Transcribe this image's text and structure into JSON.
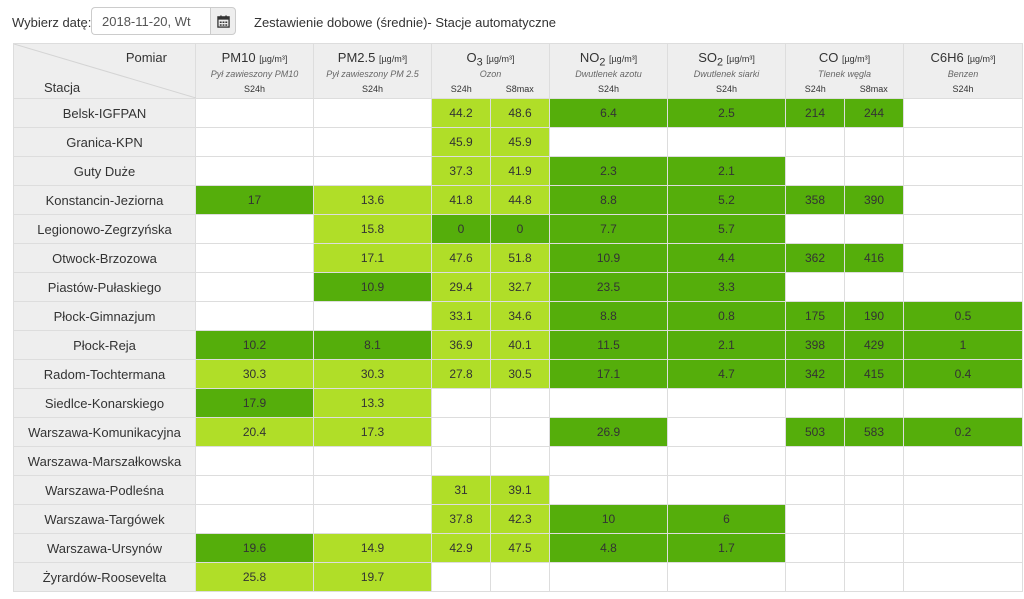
{
  "header": {
    "date_label": "Wybierz datę:",
    "date_value": "2018-11-20, Wt",
    "title": "Zestawienie dobowe (średnie)- Stacje automatyczne"
  },
  "icons": {
    "calendar": "calendar-icon"
  },
  "colors": {
    "light": "#b0de28",
    "dark": "#55ae0b",
    "header_bg": "#eeeeee"
  },
  "table": {
    "corner_top": "Pomiar",
    "corner_bottom": "Stacja",
    "pollutants": [
      {
        "name": "PM10",
        "sub": "",
        "unit": "[µg/m³]",
        "desc": "Pył zawieszony PM10",
        "types": [
          "S24h"
        ]
      },
      {
        "name": "PM2.5",
        "sub": "",
        "unit": "[µg/m³]",
        "desc": "Pył zawieszony PM 2.5",
        "types": [
          "S24h"
        ]
      },
      {
        "name": "O",
        "sub": "3",
        "unit": "[µg/m³]",
        "desc": "Ozon",
        "types": [
          "S24h",
          "S8max"
        ]
      },
      {
        "name": "NO",
        "sub": "2",
        "unit": "[µg/m³]",
        "desc": "Dwutlenek azotu",
        "types": [
          "S24h"
        ]
      },
      {
        "name": "SO",
        "sub": "2",
        "unit": "[µg/m³]",
        "desc": "Dwutlenek siarki",
        "types": [
          "S24h"
        ]
      },
      {
        "name": "CO",
        "sub": "",
        "unit": "[µg/m³]",
        "desc": "Tlenek węgla",
        "types": [
          "S24h",
          "S8max"
        ]
      },
      {
        "name": "C6H6",
        "sub": "",
        "unit": "[µg/m³]",
        "desc": "Benzen",
        "types": [
          "S24h"
        ]
      }
    ],
    "rows": [
      {
        "station": "Belsk-IGFPAN",
        "cells": [
          {
            "v": "",
            "c": "none"
          },
          {
            "v": "",
            "c": "none"
          },
          {
            "v": "44.2",
            "c": "light"
          },
          {
            "v": "48.6",
            "c": "light"
          },
          {
            "v": "6.4",
            "c": "dark"
          },
          {
            "v": "2.5",
            "c": "dark"
          },
          {
            "v": "214",
            "c": "dark"
          },
          {
            "v": "244",
            "c": "dark"
          },
          {
            "v": "",
            "c": "none"
          }
        ]
      },
      {
        "station": "Granica-KPN",
        "cells": [
          {
            "v": "",
            "c": "none"
          },
          {
            "v": "",
            "c": "none"
          },
          {
            "v": "45.9",
            "c": "light"
          },
          {
            "v": "45.9",
            "c": "light"
          },
          {
            "v": "",
            "c": "none"
          },
          {
            "v": "",
            "c": "none"
          },
          {
            "v": "",
            "c": "none"
          },
          {
            "v": "",
            "c": "none"
          },
          {
            "v": "",
            "c": "none"
          }
        ]
      },
      {
        "station": "Guty Duże",
        "cells": [
          {
            "v": "",
            "c": "none"
          },
          {
            "v": "",
            "c": "none"
          },
          {
            "v": "37.3",
            "c": "light"
          },
          {
            "v": "41.9",
            "c": "light"
          },
          {
            "v": "2.3",
            "c": "dark"
          },
          {
            "v": "2.1",
            "c": "dark"
          },
          {
            "v": "",
            "c": "none"
          },
          {
            "v": "",
            "c": "none"
          },
          {
            "v": "",
            "c": "none"
          }
        ]
      },
      {
        "station": "Konstancin-Jeziorna",
        "cells": [
          {
            "v": "17",
            "c": "dark"
          },
          {
            "v": "13.6",
            "c": "light"
          },
          {
            "v": "41.8",
            "c": "light"
          },
          {
            "v": "44.8",
            "c": "light"
          },
          {
            "v": "8.8",
            "c": "dark"
          },
          {
            "v": "5.2",
            "c": "dark"
          },
          {
            "v": "358",
            "c": "dark"
          },
          {
            "v": "390",
            "c": "dark"
          },
          {
            "v": "",
            "c": "none"
          }
        ]
      },
      {
        "station": "Legionowo-Zegrzyńska",
        "cells": [
          {
            "v": "",
            "c": "none"
          },
          {
            "v": "15.8",
            "c": "light"
          },
          {
            "v": "0",
            "c": "dark"
          },
          {
            "v": "0",
            "c": "dark"
          },
          {
            "v": "7.7",
            "c": "dark"
          },
          {
            "v": "5.7",
            "c": "dark"
          },
          {
            "v": "",
            "c": "none"
          },
          {
            "v": "",
            "c": "none"
          },
          {
            "v": "",
            "c": "none"
          }
        ]
      },
      {
        "station": "Otwock-Brzozowa",
        "cells": [
          {
            "v": "",
            "c": "none"
          },
          {
            "v": "17.1",
            "c": "light"
          },
          {
            "v": "47.6",
            "c": "light"
          },
          {
            "v": "51.8",
            "c": "light"
          },
          {
            "v": "10.9",
            "c": "dark"
          },
          {
            "v": "4.4",
            "c": "dark"
          },
          {
            "v": "362",
            "c": "dark"
          },
          {
            "v": "416",
            "c": "dark"
          },
          {
            "v": "",
            "c": "none"
          }
        ]
      },
      {
        "station": "Piastów-Pułaskiego",
        "cells": [
          {
            "v": "",
            "c": "none"
          },
          {
            "v": "10.9",
            "c": "dark"
          },
          {
            "v": "29.4",
            "c": "light"
          },
          {
            "v": "32.7",
            "c": "light"
          },
          {
            "v": "23.5",
            "c": "dark"
          },
          {
            "v": "3.3",
            "c": "dark"
          },
          {
            "v": "",
            "c": "none"
          },
          {
            "v": "",
            "c": "none"
          },
          {
            "v": "",
            "c": "none"
          }
        ]
      },
      {
        "station": "Płock-Gimnazjum",
        "cells": [
          {
            "v": "",
            "c": "none"
          },
          {
            "v": "",
            "c": "none"
          },
          {
            "v": "33.1",
            "c": "light"
          },
          {
            "v": "34.6",
            "c": "light"
          },
          {
            "v": "8.8",
            "c": "dark"
          },
          {
            "v": "0.8",
            "c": "dark"
          },
          {
            "v": "175",
            "c": "dark"
          },
          {
            "v": "190",
            "c": "dark"
          },
          {
            "v": "0.5",
            "c": "dark"
          }
        ]
      },
      {
        "station": "Płock-Reja",
        "cells": [
          {
            "v": "10.2",
            "c": "dark"
          },
          {
            "v": "8.1",
            "c": "dark"
          },
          {
            "v": "36.9",
            "c": "light"
          },
          {
            "v": "40.1",
            "c": "light"
          },
          {
            "v": "11.5",
            "c": "dark"
          },
          {
            "v": "2.1",
            "c": "dark"
          },
          {
            "v": "398",
            "c": "dark"
          },
          {
            "v": "429",
            "c": "dark"
          },
          {
            "v": "1",
            "c": "dark"
          }
        ]
      },
      {
        "station": "Radom-Tochtermana",
        "cells": [
          {
            "v": "30.3",
            "c": "light"
          },
          {
            "v": "30.3",
            "c": "light"
          },
          {
            "v": "27.8",
            "c": "light"
          },
          {
            "v": "30.5",
            "c": "light"
          },
          {
            "v": "17.1",
            "c": "dark"
          },
          {
            "v": "4.7",
            "c": "dark"
          },
          {
            "v": "342",
            "c": "dark"
          },
          {
            "v": "415",
            "c": "dark"
          },
          {
            "v": "0.4",
            "c": "dark"
          }
        ]
      },
      {
        "station": "Siedlce-Konarskiego",
        "cells": [
          {
            "v": "17.9",
            "c": "dark"
          },
          {
            "v": "13.3",
            "c": "light"
          },
          {
            "v": "",
            "c": "none"
          },
          {
            "v": "",
            "c": "none"
          },
          {
            "v": "",
            "c": "none"
          },
          {
            "v": "",
            "c": "none"
          },
          {
            "v": "",
            "c": "none"
          },
          {
            "v": "",
            "c": "none"
          },
          {
            "v": "",
            "c": "none"
          }
        ]
      },
      {
        "station": "Warszawa-Komunikacyjna",
        "cells": [
          {
            "v": "20.4",
            "c": "light"
          },
          {
            "v": "17.3",
            "c": "light"
          },
          {
            "v": "",
            "c": "none"
          },
          {
            "v": "",
            "c": "none"
          },
          {
            "v": "26.9",
            "c": "dark"
          },
          {
            "v": "",
            "c": "none"
          },
          {
            "v": "503",
            "c": "dark"
          },
          {
            "v": "583",
            "c": "dark"
          },
          {
            "v": "0.2",
            "c": "dark"
          }
        ]
      },
      {
        "station": "Warszawa-Marszałkowska",
        "cells": [
          {
            "v": "",
            "c": "none"
          },
          {
            "v": "",
            "c": "none"
          },
          {
            "v": "",
            "c": "none"
          },
          {
            "v": "",
            "c": "none"
          },
          {
            "v": "",
            "c": "none"
          },
          {
            "v": "",
            "c": "none"
          },
          {
            "v": "",
            "c": "none"
          },
          {
            "v": "",
            "c": "none"
          },
          {
            "v": "",
            "c": "none"
          }
        ]
      },
      {
        "station": "Warszawa-Podleśna",
        "cells": [
          {
            "v": "",
            "c": "none"
          },
          {
            "v": "",
            "c": "none"
          },
          {
            "v": "31",
            "c": "light"
          },
          {
            "v": "39.1",
            "c": "light"
          },
          {
            "v": "",
            "c": "none"
          },
          {
            "v": "",
            "c": "none"
          },
          {
            "v": "",
            "c": "none"
          },
          {
            "v": "",
            "c": "none"
          },
          {
            "v": "",
            "c": "none"
          }
        ]
      },
      {
        "station": "Warszawa-Targówek",
        "cells": [
          {
            "v": "",
            "c": "none"
          },
          {
            "v": "",
            "c": "none"
          },
          {
            "v": "37.8",
            "c": "light"
          },
          {
            "v": "42.3",
            "c": "light"
          },
          {
            "v": "10",
            "c": "dark"
          },
          {
            "v": "6",
            "c": "dark"
          },
          {
            "v": "",
            "c": "none"
          },
          {
            "v": "",
            "c": "none"
          },
          {
            "v": "",
            "c": "none"
          }
        ]
      },
      {
        "station": "Warszawa-Ursynów",
        "cells": [
          {
            "v": "19.6",
            "c": "dark"
          },
          {
            "v": "14.9",
            "c": "light"
          },
          {
            "v": "42.9",
            "c": "light"
          },
          {
            "v": "47.5",
            "c": "light"
          },
          {
            "v": "4.8",
            "c": "dark"
          },
          {
            "v": "1.7",
            "c": "dark"
          },
          {
            "v": "",
            "c": "none"
          },
          {
            "v": "",
            "c": "none"
          },
          {
            "v": "",
            "c": "none"
          }
        ]
      },
      {
        "station": "Żyrardów-Roosevelta",
        "cells": [
          {
            "v": "25.8",
            "c": "light"
          },
          {
            "v": "19.7",
            "c": "light"
          },
          {
            "v": "",
            "c": "none"
          },
          {
            "v": "",
            "c": "none"
          },
          {
            "v": "",
            "c": "none"
          },
          {
            "v": "",
            "c": "none"
          },
          {
            "v": "",
            "c": "none"
          },
          {
            "v": "",
            "c": "none"
          },
          {
            "v": "",
            "c": "none"
          }
        ]
      }
    ]
  }
}
